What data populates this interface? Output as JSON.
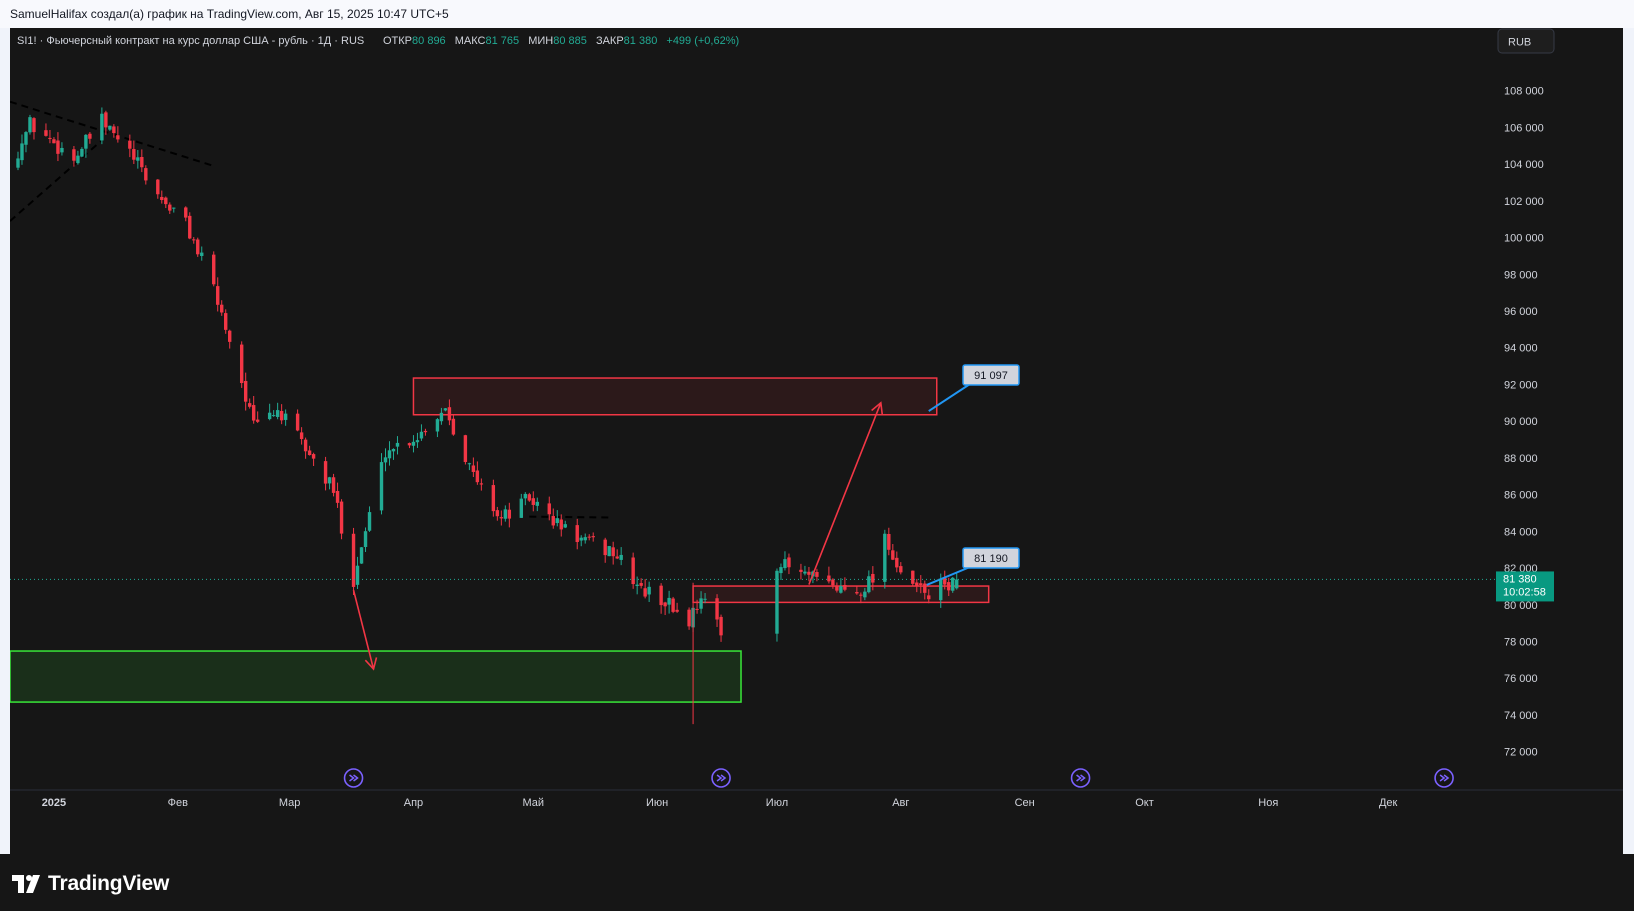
{
  "caption": "SamuelHalifax создал(а) график на TradingView.com, Авг 15, 2025 10:47 UTC+5",
  "legend": {
    "symbol_text": "SI1! · Фьючерсный контракт на курс доллар США - рубль · 1Д · RUS",
    "open_label": "ОТКР",
    "open_value": "80 896",
    "high_label": "МАКС",
    "high_value": "81 765",
    "low_label": "МИН",
    "low_value": "80 885",
    "close_label": "ЗАКР",
    "close_value": "81 380",
    "change": "+499 (+0,62%)"
  },
  "currency_button": "RUB",
  "brand": "TradingView",
  "price_label": {
    "value": "81 380",
    "countdown": "10:02:58"
  },
  "callouts": {
    "upper": "91 097",
    "lower": "81 190"
  },
  "colors": {
    "background": "#161616",
    "up": "#22ab94",
    "down": "#f23645",
    "grid_text": "#d1d4dc",
    "green_zone": "#39e639",
    "red_zone": "#f23645"
  },
  "chart_data": {
    "type": "candlestick",
    "symbol": "SI1!",
    "interval": "1Д",
    "currency": "RUB",
    "ylim": [
      71000,
      110000
    ],
    "y_ticks": [
      108000,
      106000,
      104000,
      102000,
      100000,
      98000,
      96000,
      94000,
      92000,
      90000,
      88000,
      86000,
      84000,
      82000,
      80000,
      78000,
      76000,
      74000,
      72000
    ],
    "y_tick_labels": [
      "108 000",
      "106 000",
      "104 000",
      "102 000",
      "100 000",
      "98 000",
      "96 000",
      "94 000",
      "92 000",
      "90 000",
      "88 000",
      "86 000",
      "84 000",
      "82 000",
      "80 000",
      "78 000",
      "76 000",
      "74 000",
      "72 000"
    ],
    "x_labels": [
      {
        "label": "2025",
        "date": "2025-01-01"
      },
      {
        "label": "Фев",
        "date": "2025-02-01"
      },
      {
        "label": "Мар",
        "date": "2025-03-01"
      },
      {
        "label": "Апр",
        "date": "2025-04-01"
      },
      {
        "label": "Май",
        "date": "2025-05-01"
      },
      {
        "label": "Июн",
        "date": "2025-06-01"
      },
      {
        "label": "Июл",
        "date": "2025-07-01"
      },
      {
        "label": "Авг",
        "date": "2025-08-01"
      },
      {
        "label": "Сен",
        "date": "2025-09-01"
      },
      {
        "label": "Окт",
        "date": "2025-10-01"
      },
      {
        "label": "Ноя",
        "date": "2025-11-01"
      },
      {
        "label": "Дек",
        "date": "2025-12-01"
      }
    ],
    "x_range": [
      "2024-12-21",
      "2025-12-28"
    ],
    "gap_start_date": "2025-06-17",
    "gap_end_date": "2025-07-01",
    "gap_label_dates": [
      "2025-03-17",
      "2025-06-17",
      "2025-09-15",
      "2025-12-15"
    ],
    "current_price": 81380,
    "key_points": [
      {
        "date": "2024-12-21",
        "close": 103800
      },
      {
        "date": "2024-12-26",
        "close": 106200
      },
      {
        "date": "2025-01-06",
        "close": 104300
      },
      {
        "date": "2025-01-13",
        "close": 106300
      },
      {
        "date": "2025-01-20",
        "close": 104600
      },
      {
        "date": "2025-01-27",
        "close": 102300
      },
      {
        "date": "2025-02-03",
        "close": 100800
      },
      {
        "date": "2025-02-10",
        "close": 97200
      },
      {
        "date": "2025-02-15",
        "close": 93800
      },
      {
        "date": "2025-02-20",
        "close": 89700
      },
      {
        "date": "2025-02-26",
        "close": 90600
      },
      {
        "date": "2025-03-05",
        "close": 88500
      },
      {
        "date": "2025-03-12",
        "close": 86200
      },
      {
        "date": "2025-03-17",
        "close": 81400
      },
      {
        "date": "2025-03-25",
        "close": 88400
      },
      {
        "date": "2025-04-02",
        "close": 89200
      },
      {
        "date": "2025-04-09",
        "close": 90800
      },
      {
        "date": "2025-04-16",
        "close": 87000
      },
      {
        "date": "2025-04-23",
        "close": 84700
      },
      {
        "date": "2025-04-30",
        "close": 85800
      },
      {
        "date": "2025-05-07",
        "close": 84400
      },
      {
        "date": "2025-05-14",
        "close": 83400
      },
      {
        "date": "2025-05-21",
        "close": 82900
      },
      {
        "date": "2025-05-28",
        "close": 80800
      },
      {
        "date": "2025-06-03",
        "close": 80200
      },
      {
        "date": "2025-06-09",
        "close": 79100
      },
      {
        "date": "2025-06-12",
        "close": 80600
      },
      {
        "date": "2025-06-17",
        "close": 78400
      },
      {
        "date": "2025-07-01",
        "close": 82300
      },
      {
        "date": "2025-07-07",
        "close": 81700
      },
      {
        "date": "2025-07-14",
        "close": 81000
      },
      {
        "date": "2025-07-21",
        "close": 80700
      },
      {
        "date": "2025-07-25",
        "close": 81500
      },
      {
        "date": "2025-07-28",
        "close": 83900
      },
      {
        "date": "2025-08-01",
        "close": 81400
      },
      {
        "date": "2025-08-08",
        "close": 80600
      },
      {
        "date": "2025-08-15",
        "close": 81380
      }
    ],
    "zones": [
      {
        "kind": "resistance",
        "from_date": "2025-04-01",
        "to_date": "2025-08-10",
        "y_top": 92350,
        "y_bottom": 90350
      },
      {
        "kind": "support",
        "from_date": "2025-06-10",
        "to_date": "2025-08-23",
        "y_top": 81020,
        "y_bottom": 80130
      },
      {
        "kind": "target",
        "from_date": "2024-12-21",
        "to_date": "2025-06-22",
        "y_top": 77480,
        "y_bottom": 74700
      }
    ],
    "arrows": [
      {
        "from_date": "2025-03-17",
        "from_y": 80800,
        "to_date": "2025-03-22",
        "to_y": 76500
      },
      {
        "from_date": "2025-07-09",
        "from_y": 81100,
        "to_date": "2025-07-27",
        "to_y": 91000
      }
    ],
    "trendlines": [
      {
        "from_date": "2024-12-21",
        "from_y": 107400,
        "to_date": "2025-02-10",
        "to_y": 103900
      },
      {
        "from_date": "2024-12-21",
        "from_y": 100900,
        "to_date": "2025-01-13",
        "to_y": 105300
      },
      {
        "from_date": "2025-04-30",
        "from_y": 84800,
        "to_date": "2025-05-21",
        "to_y": 84750
      }
    ],
    "anchors": [
      {
        "date": "2025-08-10",
        "value": 91097,
        "label": "91 097"
      },
      {
        "date": "2025-08-10",
        "value": 81190,
        "label": "81 190"
      }
    ]
  }
}
